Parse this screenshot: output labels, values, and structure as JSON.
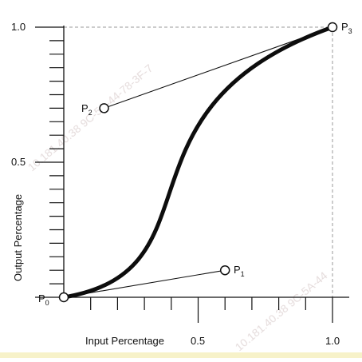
{
  "diagram": {
    "curve_type": "cubic-bezier",
    "x_axis": {
      "label": "Input Percentage",
      "tick_labels": [
        "0.5",
        "1.0"
      ]
    },
    "y_axis": {
      "label": "Output Percentage",
      "tick_labels": [
        "1.0",
        "0.5"
      ]
    },
    "points": [
      {
        "name": "P0",
        "base": "P",
        "sub": "0",
        "x": 0.0,
        "y": 0.0
      },
      {
        "name": "P1",
        "base": "P",
        "sub": "1",
        "x": 0.6,
        "y": 0.1
      },
      {
        "name": "P2",
        "base": "P",
        "sub": "2",
        "x": 0.15,
        "y": 0.7
      },
      {
        "name": "P3",
        "base": "P",
        "sub": "3",
        "x": 1.0,
        "y": 1.0
      }
    ],
    "watermark": [
      "10.181.40.38  9C-5A-44-78-3F-7",
      "10.181.40.38  9C-5A-44"
    ],
    "colors": {
      "curve": "#0d0d0d",
      "handles": "#111111",
      "guides": "#9a9a9a",
      "watermark": "#e2d8d8",
      "bottom_strip": "#f7f2c9"
    }
  }
}
